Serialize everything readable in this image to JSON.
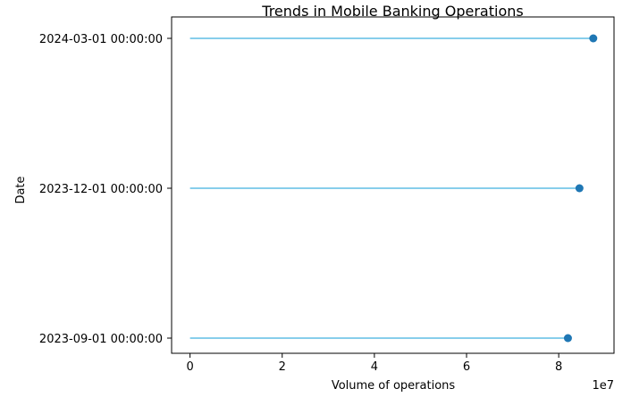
{
  "chart_data": {
    "type": "lollipop",
    "title": "Trends in Mobile Banking Operations",
    "xlabel": "Volume of operations",
    "ylabel": "Date",
    "x_offset_label": "1e7",
    "xlim": [
      -0.4,
      9.2
    ],
    "xticks": [
      0,
      2,
      4,
      6,
      8
    ],
    "xtick_labels": [
      "0",
      "2",
      "4",
      "6",
      "8"
    ],
    "categories": [
      "2023-09-01 00:00:00",
      "2023-12-01 00:00:00",
      "2024-03-01 00:00:00"
    ],
    "values": [
      82000000,
      84500000,
      87500000
    ],
    "stem_color": "#87ceeb",
    "marker_color": "#1f77b4",
    "grid": false,
    "legend": false
  }
}
